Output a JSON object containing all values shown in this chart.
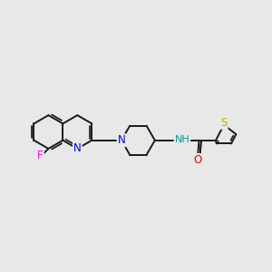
{
  "background_color": "#e8e8e8",
  "bond_color": "#1a1a1a",
  "bond_width": 1.4,
  "atom_colors": {
    "N": "#0000ee",
    "O": "#ee0000",
    "F": "#ee00ee",
    "S": "#bbaa00",
    "NH": "#009999",
    "C": "#1a1a1a"
  },
  "font_size": 8.5,
  "fig_size": [
    3.0,
    3.0
  ],
  "dpi": 100
}
